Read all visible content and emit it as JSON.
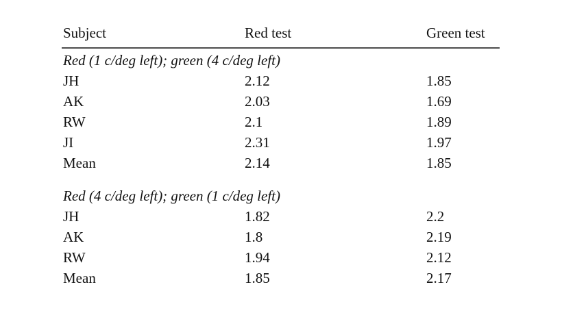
{
  "table": {
    "header": [
      "Subject",
      "Red test",
      "Green test"
    ],
    "sections": [
      {
        "title": "Red (1 c/deg left); green (4 c/deg left)",
        "rows": [
          [
            "JH",
            "2.12",
            "1.85"
          ],
          [
            "AK",
            "2.03",
            "1.69"
          ],
          [
            "RW",
            "2.1",
            "1.89"
          ],
          [
            "JI",
            "2.31",
            "1.97"
          ],
          [
            "Mean",
            "2.14",
            "1.85"
          ]
        ]
      },
      {
        "title": "Red (4 c/deg left); green (1 c/deg left)",
        "rows": [
          [
            "JH",
            "1.82",
            "2.2"
          ],
          [
            "AK",
            "1.8",
            "2.19"
          ],
          [
            "RW",
            "1.94",
            "2.12"
          ],
          [
            "Mean",
            "1.85",
            "2.17"
          ]
        ]
      }
    ]
  }
}
